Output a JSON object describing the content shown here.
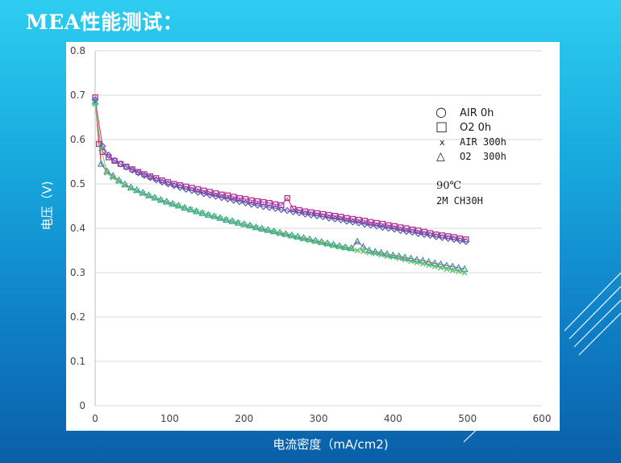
{
  "slide": {
    "title": "MEA性能测试："
  },
  "chart_data": {
    "type": "line",
    "title": "",
    "xlabel": "电流密度（mA/cm2)",
    "ylabel": "电压（V)",
    "xlim": [
      0,
      600
    ],
    "ylim": [
      0,
      0.8
    ],
    "x_ticks": [
      0,
      100,
      200,
      300,
      400,
      500,
      600
    ],
    "y_ticks": [
      0,
      0.1,
      0.2,
      0.3,
      0.4,
      0.5,
      0.6,
      0.7,
      0.8
    ],
    "grid": "horizontal",
    "legend_position": "top-right",
    "legend": [
      {
        "symbol": "○",
        "label": "AIR 0h"
      },
      {
        "symbol": "□",
        "label": "O2 0h"
      },
      {
        "symbol": "x",
        "label": "AIR 300h"
      },
      {
        "symbol": "△",
        "label": "O2  300h"
      }
    ],
    "annotations": [
      "90℃",
      "2M CH30H"
    ],
    "colors": {
      "diamond": "#4a5fb0",
      "square": "#b0309a",
      "x_mark": "#5cc06a",
      "triangle": "#2a9ab8",
      "line_upper": "#c03aa8",
      "line_lower": "#4aa8c8",
      "line_green": "#7bd16a",
      "line_red": "#e03a3a"
    },
    "series": [
      {
        "marker": "square",
        "x": [
          0,
          5,
          10,
          18,
          26,
          34,
          42,
          50,
          58,
          66,
          74,
          82,
          90,
          98,
          106,
          114,
          122,
          130,
          138,
          146,
          154,
          162,
          170,
          178,
          186,
          194,
          202,
          210,
          218,
          226,
          234,
          242,
          250,
          258,
          266,
          274,
          282,
          290,
          298,
          306,
          314,
          322,
          330,
          338,
          346,
          354,
          362,
          370,
          378,
          386,
          394,
          402,
          410,
          418,
          426,
          434,
          442,
          450,
          458,
          466,
          474,
          482,
          490,
          498
        ],
        "y": [
          0.695,
          0.59,
          0.572,
          0.56,
          0.552,
          0.545,
          0.539,
          0.533,
          0.527,
          0.522,
          0.517,
          0.513,
          0.508,
          0.504,
          0.5,
          0.497,
          0.494,
          0.491,
          0.488,
          0.485,
          0.482,
          0.479,
          0.476,
          0.474,
          0.471,
          0.468,
          0.466,
          0.463,
          0.461,
          0.459,
          0.457,
          0.454,
          0.452,
          0.468,
          0.444,
          0.441,
          0.438,
          0.436,
          0.434,
          0.432,
          0.43,
          0.428,
          0.426,
          0.423,
          0.421,
          0.419,
          0.417,
          0.414,
          0.412,
          0.41,
          0.407,
          0.405,
          0.402,
          0.4,
          0.397,
          0.395,
          0.392,
          0.389,
          0.386,
          0.384,
          0.382,
          0.38,
          0.377,
          0.375
        ]
      },
      {
        "marker": "diamond",
        "x": [
          0,
          10,
          18,
          26,
          34,
          42,
          50,
          58,
          66,
          74,
          82,
          90,
          98,
          106,
          114,
          122,
          130,
          138,
          146,
          154,
          162,
          170,
          178,
          186,
          194,
          202,
          210,
          218,
          226,
          234,
          242,
          250,
          258,
          266,
          274,
          282,
          290,
          298,
          306,
          314,
          322,
          330,
          338,
          346,
          354,
          362,
          370,
          378,
          386,
          394,
          402,
          410,
          418,
          426,
          434,
          442,
          450,
          458,
          466,
          474,
          482,
          490,
          498
        ],
        "y": [
          0.69,
          0.585,
          0.565,
          0.553,
          0.545,
          0.538,
          0.531,
          0.525,
          0.519,
          0.514,
          0.509,
          0.504,
          0.5,
          0.496,
          0.492,
          0.488,
          0.485,
          0.481,
          0.478,
          0.475,
          0.472,
          0.469,
          0.466,
          0.463,
          0.46,
          0.457,
          0.454,
          0.452,
          0.449,
          0.447,
          0.445,
          0.442,
          0.44,
          0.437,
          0.435,
          0.432,
          0.43,
          0.428,
          0.426,
          0.423,
          0.421,
          0.419,
          0.416,
          0.414,
          0.412,
          0.409,
          0.407,
          0.405,
          0.402,
          0.4,
          0.398,
          0.395,
          0.393,
          0.391,
          0.388,
          0.386,
          0.384,
          0.381,
          0.379,
          0.377,
          0.375,
          0.372,
          0.37
        ]
      },
      {
        "marker": "triangle",
        "x": [
          0,
          8,
          16,
          24,
          32,
          40,
          48,
          56,
          64,
          72,
          80,
          88,
          96,
          104,
          112,
          120,
          128,
          136,
          144,
          152,
          160,
          168,
          176,
          184,
          192,
          200,
          208,
          216,
          224,
          232,
          240,
          248,
          256,
          264,
          272,
          280,
          288,
          296,
          304,
          312,
          320,
          328,
          336,
          344,
          352,
          360,
          368,
          376,
          384,
          392,
          400,
          408,
          416,
          424,
          432,
          440,
          448,
          456,
          464,
          472,
          480,
          488,
          496
        ],
        "y": [
          0.685,
          0.545,
          0.528,
          0.518,
          0.508,
          0.499,
          0.492,
          0.486,
          0.48,
          0.474,
          0.469,
          0.464,
          0.46,
          0.455,
          0.451,
          0.446,
          0.442,
          0.438,
          0.434,
          0.43,
          0.427,
          0.423,
          0.419,
          0.416,
          0.412,
          0.409,
          0.406,
          0.402,
          0.399,
          0.396,
          0.393,
          0.39,
          0.387,
          0.384,
          0.381,
          0.378,
          0.375,
          0.372,
          0.369,
          0.366,
          0.363,
          0.36,
          0.357,
          0.355,
          0.37,
          0.358,
          0.35,
          0.347,
          0.345,
          0.342,
          0.339,
          0.337,
          0.334,
          0.332,
          0.329,
          0.327,
          0.324,
          0.321,
          0.319,
          0.316,
          0.314,
          0.311,
          0.308
        ]
      },
      {
        "marker": "x",
        "x": [
          0,
          8,
          16,
          24,
          32,
          40,
          48,
          56,
          64,
          72,
          80,
          88,
          96,
          104,
          112,
          120,
          128,
          136,
          144,
          152,
          160,
          168,
          176,
          184,
          192,
          200,
          208,
          216,
          224,
          232,
          240,
          248,
          256,
          264,
          272,
          280,
          288,
          296,
          304,
          312,
          320,
          328,
          336,
          344,
          352,
          360,
          368,
          376,
          384,
          392,
          400,
          408,
          416,
          424,
          432,
          440,
          448,
          456,
          464,
          472,
          480,
          488,
          496
        ],
        "y": [
          0.68,
          0.58,
          0.525,
          0.514,
          0.505,
          0.497,
          0.49,
          0.484,
          0.478,
          0.473,
          0.468,
          0.463,
          0.458,
          0.454,
          0.45,
          0.446,
          0.442,
          0.438,
          0.434,
          0.43,
          0.426,
          0.422,
          0.419,
          0.415,
          0.412,
          0.408,
          0.405,
          0.401,
          0.398,
          0.395,
          0.392,
          0.388,
          0.385,
          0.382,
          0.379,
          0.376,
          0.373,
          0.37,
          0.367,
          0.364,
          0.361,
          0.358,
          0.356,
          0.353,
          0.35,
          0.348,
          0.345,
          0.343,
          0.34,
          0.337,
          0.335,
          0.332,
          0.329,
          0.326,
          0.323,
          0.32,
          0.317,
          0.314,
          0.311,
          0.308,
          0.305,
          0.303,
          0.3
        ]
      }
    ]
  }
}
